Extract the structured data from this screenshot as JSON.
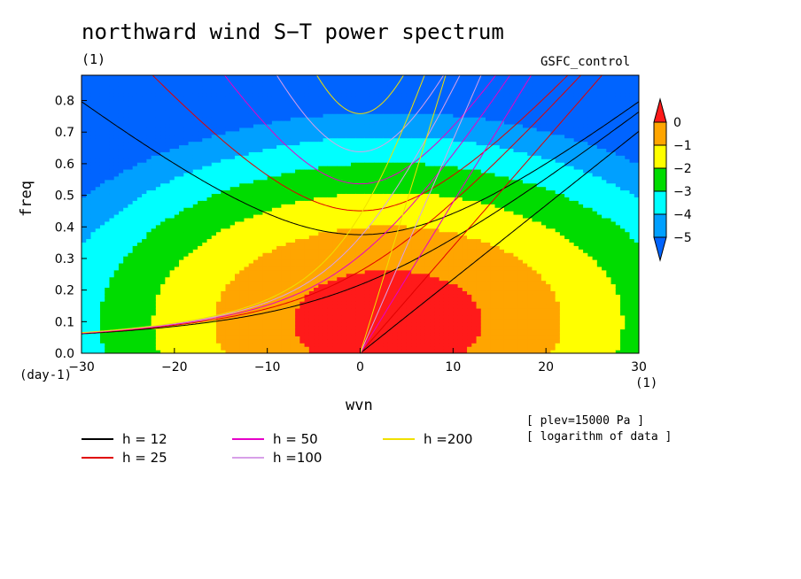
{
  "chart_data": {
    "type": "heatmap",
    "title": "northward wind S−T power spectrum",
    "units_label": "(1)",
    "dataset_label": "GSFC_control",
    "xlabel": "wvn",
    "ylabel": "freq",
    "x_unit": "(1)",
    "y_unit": "(day-1)",
    "xlim": [
      -30,
      30
    ],
    "ylim": [
      0,
      0.88
    ],
    "x_ticks": [
      -30,
      -20,
      -10,
      0,
      10,
      20,
      30
    ],
    "y_ticks": [
      0.0,
      0.1,
      0.2,
      0.3,
      0.4,
      0.5,
      0.6,
      0.7,
      0.8
    ],
    "x_tick_labels": [
      "−30",
      "−20",
      "−10",
      "0",
      "10",
      "20",
      "30"
    ],
    "y_tick_labels": [
      "0.0",
      "0.1",
      "0.2",
      "0.3",
      "0.4",
      "0.5",
      "0.6",
      "0.7",
      "0.8"
    ],
    "colorbar": {
      "levels": [
        0,
        -1,
        -2,
        -3,
        -4,
        -5
      ],
      "tick_labels": [
        "0",
        "−1",
        "−2",
        "−3",
        "−4",
        "−5"
      ],
      "colors": [
        "#ff1a1a",
        "#ffa500",
        "#ffff00",
        "#00dc00",
        "#00ffff",
        "#00a0ff",
        "#0064ff"
      ]
    },
    "approx_field": {
      "description": "log10 power: maximum near wvn=3, freq=0.1; decreasing outward",
      "peak_wvn": 3,
      "peak_freq": 0.1,
      "peak_value": 0.6
    },
    "dispersion_curves": [
      {
        "name": "h = 12",
        "h": 12,
        "color": "#000000"
      },
      {
        "name": "h = 25",
        "h": 25,
        "color": "#e00000"
      },
      {
        "name": "h = 50",
        "h": 50,
        "color": "#e600c8"
      },
      {
        "name": "h =100",
        "h": 100,
        "color": "#d8a0e8"
      },
      {
        "name": "h =200",
        "h": 200,
        "color": "#f0e000"
      }
    ],
    "notes": [
      "[ plev=15000 Pa ]",
      "[ logarithm of data ]"
    ]
  }
}
